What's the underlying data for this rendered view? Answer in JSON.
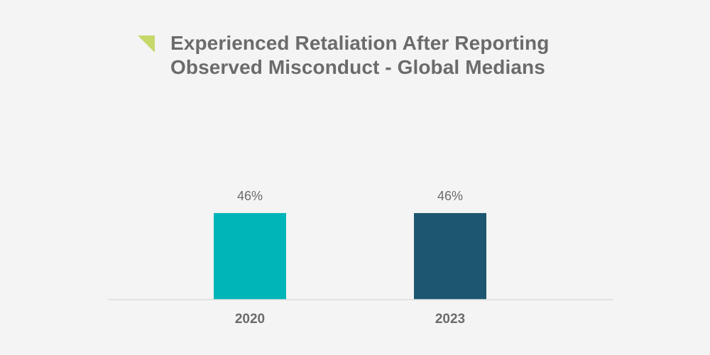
{
  "chart_data": {
    "type": "bar",
    "title_lines": [
      "Experienced Retaliation After Reporting",
      "Observed Misconduct - Global Medians"
    ],
    "categories": [
      "2020",
      "2023"
    ],
    "values": [
      46,
      46
    ],
    "value_labels": [
      "46%",
      "46%"
    ],
    "bar_colors": [
      "#00b5b8",
      "#1c5670"
    ],
    "ylim": [
      0,
      100
    ],
    "grid": false,
    "legend": "none",
    "xlabel": "",
    "ylabel": ""
  },
  "colors": {
    "background": "#f4f4f4",
    "title": "#6b6b6b",
    "label": "#6b6b6b",
    "axis": "#dcdcdc",
    "accent_mark": "#c6d86a"
  }
}
